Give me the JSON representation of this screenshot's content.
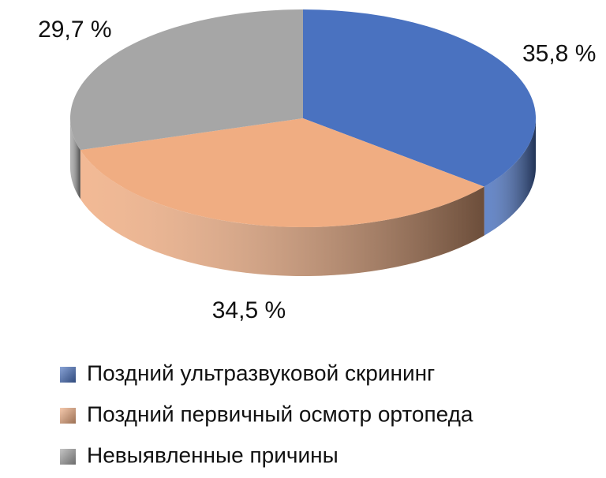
{
  "chart_data": {
    "type": "pie",
    "categories": [
      "Поздний ультразвуковой скрининг",
      "Поздний первичный осмотр ортопеда",
      "Невыявленные причины"
    ],
    "values": [
      35.8,
      34.5,
      29.7
    ],
    "value_labels": [
      "35,8 %",
      "34,5 %",
      "29,7 %"
    ],
    "colors": [
      "#4a72c0",
      "#f0ad82",
      "#a6a6a6"
    ],
    "legend": "bottom"
  }
}
